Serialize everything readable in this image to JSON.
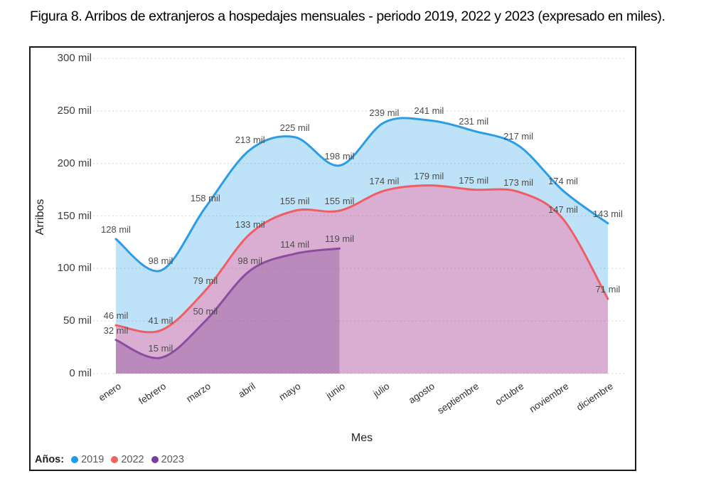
{
  "title": "Figura 8. Arribos de extranjeros a hospedajes mensuales - periodo 2019, 2022 y 2023 (expresado en miles).",
  "chart_data": {
    "type": "area",
    "title": "Figura 8. Arribos de extranjeros a hospedajes mensuales - periodo 2019, 2022 y 2023 (expresado en miles).",
    "xlabel": "Mes",
    "ylabel": "Arribos",
    "ylim": [
      0,
      300
    ],
    "ytick_step": 50,
    "yticks": [
      "0 mil",
      "50 mil",
      "100 mil",
      "150 mil",
      "200 mil",
      "250 mil",
      "300 mil"
    ],
    "grid": "dotted-horizontal",
    "label_suffix": " mil",
    "legend_title": "Años:",
    "legend_position": "bottom-left",
    "categories": [
      "enero",
      "febrero",
      "marzo",
      "abril",
      "mayo",
      "junio",
      "julio",
      "agosto",
      "septiembre",
      "octubre",
      "noviembre",
      "diciembre"
    ],
    "series": [
      {
        "name": "2019",
        "values": [
          128,
          98,
          158,
          213,
          225,
          198,
          239,
          241,
          231,
          217,
          174,
          143
        ],
        "line_color": "#2b9ce8",
        "fill_color": "#bee2f8",
        "dot_color": "#1c9bf0"
      },
      {
        "name": "2022",
        "values": [
          46,
          41,
          79,
          133,
          155,
          155,
          174,
          179,
          175,
          173,
          147,
          71
        ],
        "line_color": "#f05d63",
        "fill_color": "#d9aed2",
        "dot_color": "#f4635e"
      },
      {
        "name": "2023",
        "values": [
          32,
          15,
          50,
          98,
          114,
          119
        ],
        "line_color": "#8d4d9e",
        "fill_color": "#bb8abd",
        "dot_color": "#7a3e9d"
      }
    ]
  }
}
